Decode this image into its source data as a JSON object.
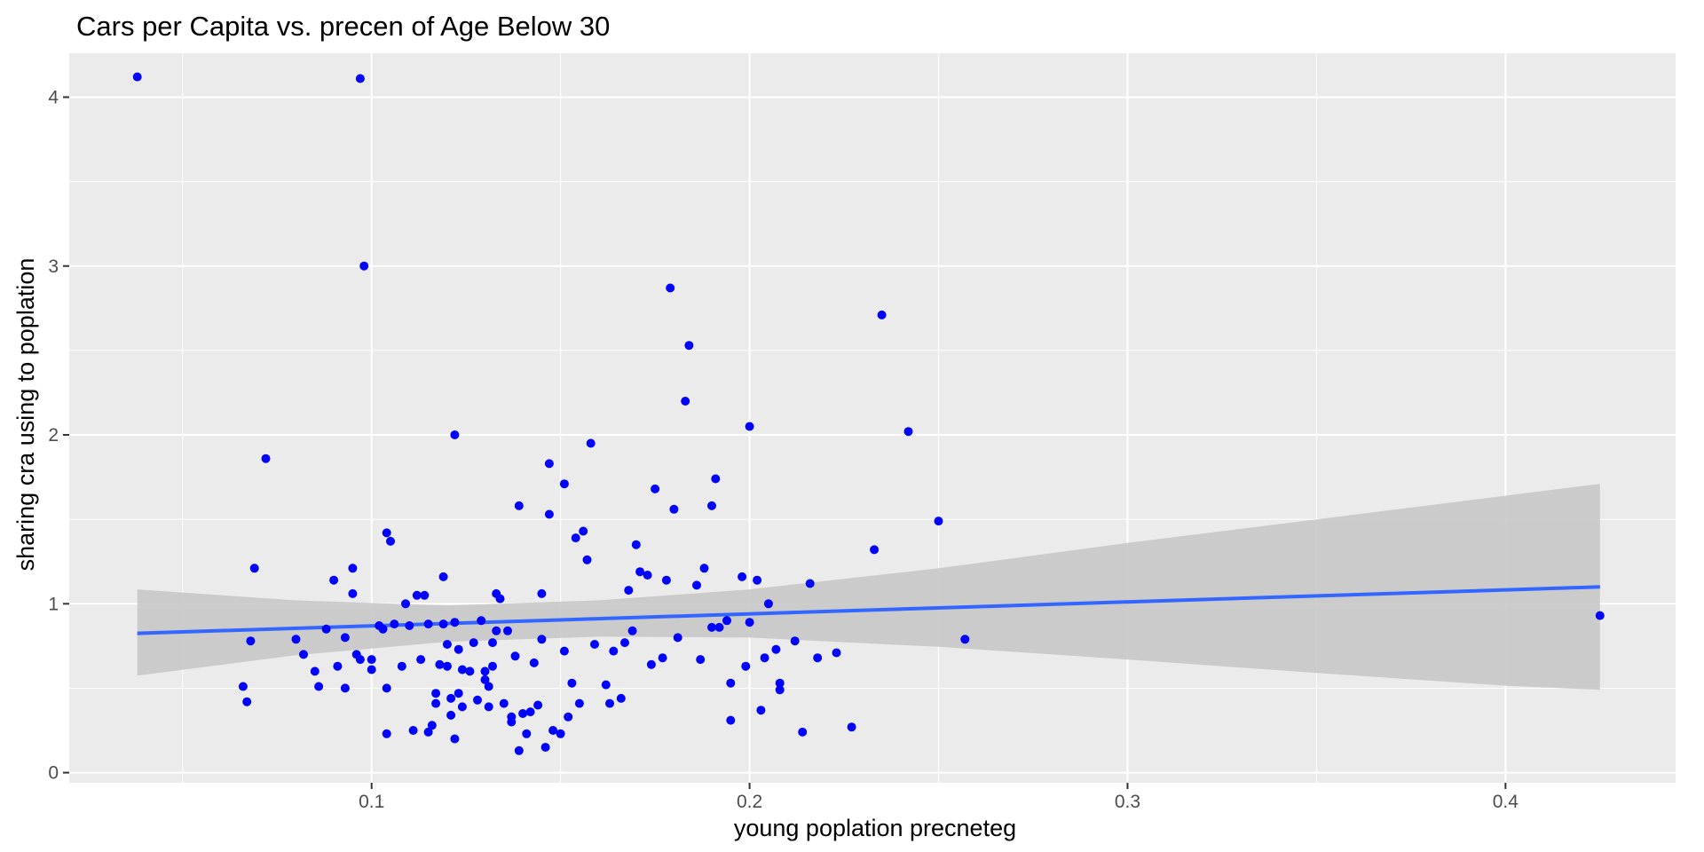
{
  "chart_data": {
    "type": "scatter",
    "title": "Cars per Capita vs. precen of Age Below 30",
    "xlabel": "young poplation precneteg",
    "ylabel": "sharing cra using to poplation",
    "xlim": [
      0.02,
      0.445
    ],
    "ylim": [
      -0.06,
      4.26
    ],
    "x_ticks": [
      0.1,
      0.2,
      0.3,
      0.4
    ],
    "x_tick_labels": [
      "0.1",
      "0.2",
      "0.3",
      "0.4"
    ],
    "y_ticks": [
      0,
      1,
      2,
      3,
      4
    ],
    "y_tick_labels": [
      "0",
      "1",
      "2",
      "3",
      "4"
    ],
    "grid": true,
    "background_color": "#ebebeb",
    "grid_color": "#ffffff",
    "point_color": "#0000ff",
    "line_color": "#3366ff",
    "ribbon_color": "#c8c8c8",
    "points": [
      [
        0.038,
        4.12
      ],
      [
        0.097,
        4.11
      ],
      [
        0.098,
        3.0
      ],
      [
        0.072,
        1.86
      ],
      [
        0.066,
        0.51
      ],
      [
        0.067,
        0.42
      ],
      [
        0.068,
        0.78
      ],
      [
        0.069,
        1.21
      ],
      [
        0.08,
        0.79
      ],
      [
        0.082,
        0.7
      ],
      [
        0.085,
        0.6
      ],
      [
        0.086,
        0.51
      ],
      [
        0.088,
        0.85
      ],
      [
        0.09,
        1.14
      ],
      [
        0.091,
        0.63
      ],
      [
        0.093,
        0.5
      ],
      [
        0.093,
        0.8
      ],
      [
        0.095,
        1.06
      ],
      [
        0.095,
        1.21
      ],
      [
        0.096,
        0.7
      ],
      [
        0.097,
        0.67
      ],
      [
        0.1,
        0.61
      ],
      [
        0.1,
        0.67
      ],
      [
        0.102,
        0.87
      ],
      [
        0.103,
        0.85
      ],
      [
        0.104,
        1.42
      ],
      [
        0.105,
        1.37
      ],
      [
        0.104,
        0.5
      ],
      [
        0.104,
        0.23
      ],
      [
        0.106,
        0.88
      ],
      [
        0.108,
        0.63
      ],
      [
        0.109,
        1.0
      ],
      [
        0.11,
        0.87
      ],
      [
        0.111,
        0.25
      ],
      [
        0.112,
        1.05
      ],
      [
        0.113,
        0.67
      ],
      [
        0.114,
        1.05
      ],
      [
        0.115,
        0.88
      ],
      [
        0.115,
        0.24
      ],
      [
        0.116,
        0.28
      ],
      [
        0.117,
        0.47
      ],
      [
        0.117,
        0.41
      ],
      [
        0.118,
        0.64
      ],
      [
        0.119,
        1.16
      ],
      [
        0.119,
        0.88
      ],
      [
        0.12,
        0.76
      ],
      [
        0.12,
        0.63
      ],
      [
        0.121,
        0.34
      ],
      [
        0.121,
        0.44
      ],
      [
        0.122,
        2.0
      ],
      [
        0.122,
        0.89
      ],
      [
        0.122,
        0.2
      ],
      [
        0.123,
        0.47
      ],
      [
        0.123,
        0.73
      ],
      [
        0.124,
        0.61
      ],
      [
        0.124,
        0.39
      ],
      [
        0.126,
        0.6
      ],
      [
        0.127,
        0.77
      ],
      [
        0.128,
        0.43
      ],
      [
        0.129,
        0.9
      ],
      [
        0.13,
        0.6
      ],
      [
        0.13,
        0.55
      ],
      [
        0.131,
        0.51
      ],
      [
        0.131,
        0.39
      ],
      [
        0.132,
        0.63
      ],
      [
        0.132,
        0.77
      ],
      [
        0.133,
        1.06
      ],
      [
        0.133,
        0.84
      ],
      [
        0.134,
        1.03
      ],
      [
        0.135,
        0.41
      ],
      [
        0.136,
        0.84
      ],
      [
        0.137,
        0.33
      ],
      [
        0.137,
        0.3
      ],
      [
        0.138,
        0.69
      ],
      [
        0.139,
        1.58
      ],
      [
        0.139,
        0.13
      ],
      [
        0.14,
        0.35
      ],
      [
        0.141,
        0.23
      ],
      [
        0.142,
        0.36
      ],
      [
        0.143,
        0.65
      ],
      [
        0.144,
        0.4
      ],
      [
        0.145,
        1.06
      ],
      [
        0.145,
        0.79
      ],
      [
        0.146,
        0.15
      ],
      [
        0.147,
        1.83
      ],
      [
        0.147,
        1.53
      ],
      [
        0.148,
        0.25
      ],
      [
        0.15,
        0.23
      ],
      [
        0.151,
        1.71
      ],
      [
        0.151,
        0.72
      ],
      [
        0.152,
        0.33
      ],
      [
        0.153,
        0.53
      ],
      [
        0.154,
        1.39
      ],
      [
        0.155,
        0.41
      ],
      [
        0.156,
        1.43
      ],
      [
        0.157,
        1.26
      ],
      [
        0.158,
        1.95
      ],
      [
        0.159,
        0.76
      ],
      [
        0.162,
        0.52
      ],
      [
        0.163,
        0.41
      ],
      [
        0.164,
        0.72
      ],
      [
        0.166,
        0.44
      ],
      [
        0.167,
        0.77
      ],
      [
        0.168,
        1.08
      ],
      [
        0.169,
        0.84
      ],
      [
        0.17,
        1.35
      ],
      [
        0.171,
        1.19
      ],
      [
        0.173,
        1.17
      ],
      [
        0.174,
        0.64
      ],
      [
        0.175,
        1.68
      ],
      [
        0.177,
        0.68
      ],
      [
        0.178,
        1.14
      ],
      [
        0.179,
        2.87
      ],
      [
        0.18,
        1.56
      ],
      [
        0.181,
        0.8
      ],
      [
        0.183,
        2.2
      ],
      [
        0.184,
        2.53
      ],
      [
        0.186,
        1.11
      ],
      [
        0.187,
        0.67
      ],
      [
        0.188,
        1.21
      ],
      [
        0.19,
        0.86
      ],
      [
        0.19,
        1.58
      ],
      [
        0.191,
        1.74
      ],
      [
        0.192,
        0.86
      ],
      [
        0.194,
        0.9
      ],
      [
        0.195,
        0.53
      ],
      [
        0.195,
        0.31
      ],
      [
        0.198,
        1.16
      ],
      [
        0.199,
        0.63
      ],
      [
        0.2,
        0.89
      ],
      [
        0.2,
        2.05
      ],
      [
        0.202,
        1.14
      ],
      [
        0.203,
        0.37
      ],
      [
        0.204,
        0.68
      ],
      [
        0.205,
        1.0
      ],
      [
        0.207,
        0.73
      ],
      [
        0.208,
        0.53
      ],
      [
        0.208,
        0.49
      ],
      [
        0.212,
        0.78
      ],
      [
        0.214,
        0.24
      ],
      [
        0.216,
        1.12
      ],
      [
        0.218,
        0.68
      ],
      [
        0.223,
        0.71
      ],
      [
        0.227,
        0.27
      ],
      [
        0.233,
        1.32
      ],
      [
        0.235,
        2.71
      ],
      [
        0.242,
        2.02
      ],
      [
        0.25,
        1.49
      ],
      [
        0.257,
        0.79
      ],
      [
        0.425,
        0.93
      ]
    ],
    "smooth_line": [
      [
        0.038,
        0.825
      ],
      [
        0.425,
        1.1
      ]
    ],
    "ribbon": {
      "x": [
        0.038,
        0.08,
        0.12,
        0.16,
        0.2,
        0.25,
        0.3,
        0.35,
        0.4,
        0.425
      ],
      "upper": [
        1.085,
        1.02,
        0.99,
        1.02,
        1.085,
        1.21,
        1.36,
        1.5,
        1.64,
        1.71
      ],
      "lower": [
        0.575,
        0.695,
        0.775,
        0.805,
        0.8,
        0.745,
        0.67,
        0.59,
        0.515,
        0.49
      ]
    }
  }
}
